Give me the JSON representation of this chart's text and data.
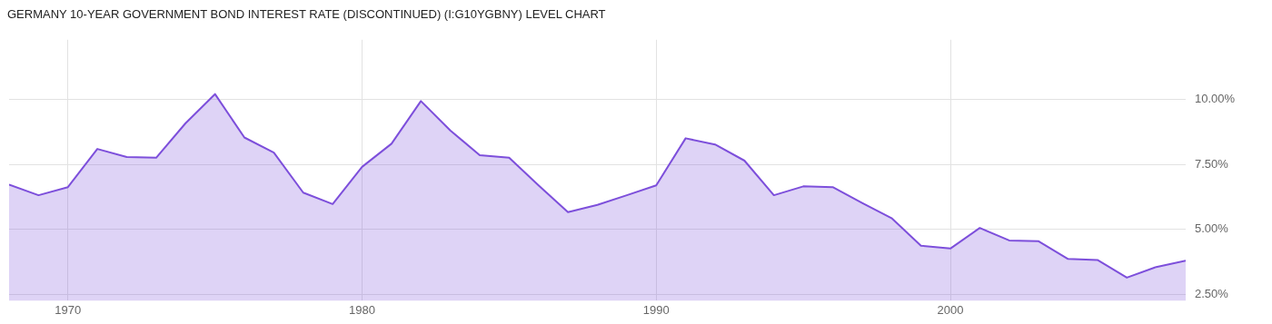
{
  "chart_data": {
    "type": "area",
    "title": "GERMANY 10-YEAR GOVERNMENT BOND INTEREST RATE (DISCONTINUED) (I:G10YGBNY) LEVEL CHART",
    "x": [
      1968,
      1969,
      1970,
      1971,
      1972,
      1973,
      1974,
      1975,
      1976,
      1977,
      1978,
      1979,
      1980,
      1981,
      1982,
      1983,
      1984,
      1985,
      1986,
      1987,
      1988,
      1989,
      1990,
      1991,
      1992,
      1993,
      1994,
      1995,
      1996,
      1997,
      1998,
      1999,
      2000,
      2001,
      2002,
      2003,
      2004,
      2005,
      2006,
      2007,
      2008
    ],
    "series": [
      {
        "color": "#7d4fdb",
        "values": [
          6.73,
          6.32,
          6.63,
          8.1,
          7.79,
          7.76,
          9.09,
          10.21,
          8.54,
          7.96,
          6.42,
          5.98,
          7.41,
          8.3,
          9.94,
          8.81,
          7.86,
          7.76,
          6.7,
          5.67,
          5.95,
          6.32,
          6.7,
          8.51,
          8.27,
          7.65,
          6.32,
          6.66,
          6.63,
          6.02,
          5.44,
          4.38,
          4.27,
          5.06,
          4.58,
          4.55,
          3.87,
          3.83,
          3.15,
          3.56,
          3.8
        ]
      }
    ],
    "xlim": [
      1968,
      2008
    ],
    "xticks": [
      1970,
      1980,
      1990,
      2000
    ],
    "ylim": [
      2.26,
      12.3
    ],
    "yticks": [
      {
        "value": 2.5,
        "label": "2.50%"
      },
      {
        "value": 5,
        "label": "5.00%"
      },
      {
        "value": 7.5,
        "label": "7.50%"
      },
      {
        "value": 10,
        "label": "10.00%"
      }
    ],
    "grid": true,
    "legend": false
  }
}
